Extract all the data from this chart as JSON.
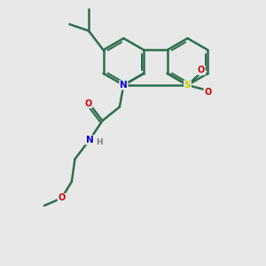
{
  "bg": "#e8e8e8",
  "bond_color": "#2d6e4e",
  "lw": 1.8,
  "atom_colors": {
    "N": "#0000cc",
    "O": "#cc0000",
    "S": "#cccc00",
    "H": "#808080"
  },
  "figsize": [
    3.0,
    3.0
  ],
  "dpi": 100
}
